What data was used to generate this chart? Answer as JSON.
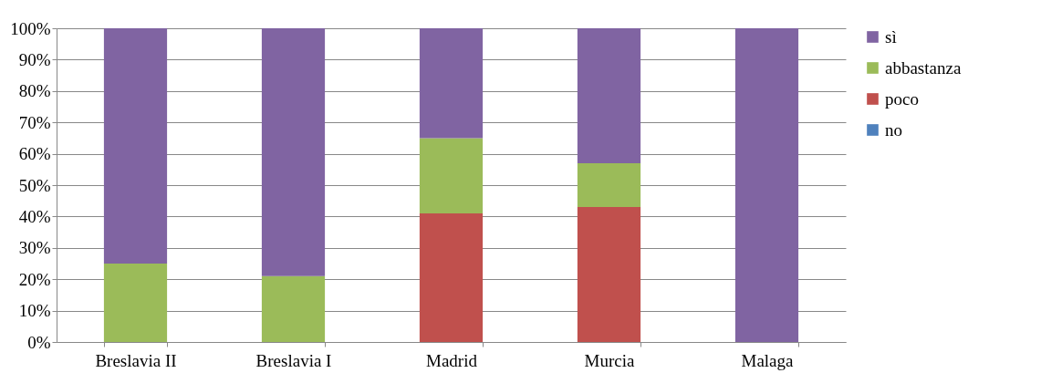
{
  "chart_data": {
    "type": "bar",
    "stacked": true,
    "categories": [
      "Breslavia II",
      "Breslavia I",
      "Madrid",
      "Murcia",
      "Malaga"
    ],
    "series": [
      {
        "name": "no",
        "color": "#4f81bd",
        "values": [
          0,
          0,
          0,
          0,
          0
        ]
      },
      {
        "name": "poco",
        "color": "#c0504d",
        "values": [
          0,
          0,
          41,
          43,
          0
        ]
      },
      {
        "name": "abbastanza",
        "color": "#9bbb59",
        "values": [
          25,
          21,
          24,
          14,
          0
        ]
      },
      {
        "name": "sì",
        "color": "#8064a2",
        "values": [
          75,
          79,
          35,
          43,
          100
        ]
      }
    ],
    "ylim": [
      0,
      100
    ],
    "yticks": [
      {
        "value": 0,
        "label": "0%"
      },
      {
        "value": 10,
        "label": "10%"
      },
      {
        "value": 20,
        "label": "20%"
      },
      {
        "value": 30,
        "label": "30%"
      },
      {
        "value": 40,
        "label": "40%"
      },
      {
        "value": 50,
        "label": "50%"
      },
      {
        "value": 60,
        "label": "60%"
      },
      {
        "value": 70,
        "label": "70%"
      },
      {
        "value": 80,
        "label": "80%"
      },
      {
        "value": 90,
        "label": "90%"
      },
      {
        "value": 100,
        "label": "100%"
      }
    ],
    "grid": "y",
    "legend": "right"
  }
}
